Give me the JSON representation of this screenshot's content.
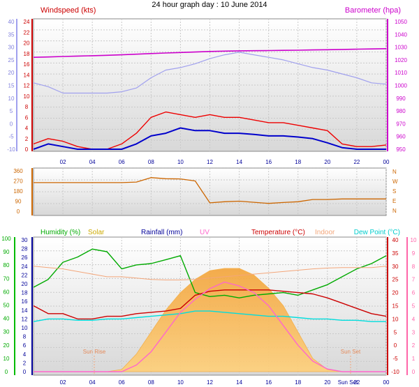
{
  "title": "24 hour graph day : 10 June 2014",
  "x_ticks": [
    "02",
    "04",
    "06",
    "08",
    "10",
    "12",
    "14",
    "16",
    "18",
    "20",
    "22",
    "00"
  ],
  "chart_data": [
    {
      "type": "line",
      "panel": "wind",
      "left_label": "Windspeed (kts)",
      "right_label": "Barometer (hpa)",
      "left_ticks": [
        "24",
        "22",
        "20",
        "18",
        "16",
        "14",
        "12",
        "10",
        "8",
        "6",
        "4",
        "2",
        "0"
      ],
      "blue_ticks": [
        "40",
        "35",
        "30",
        "25",
        "20",
        "15",
        "10",
        "5",
        "0",
        "-5",
        "-10"
      ],
      "right_ticks": [
        "1050",
        "1040",
        "1030",
        "1020",
        "1010",
        "1000",
        "990",
        "980",
        "970",
        "960",
        "950"
      ],
      "hours": [
        0,
        1,
        2,
        3,
        4,
        5,
        6,
        7,
        8,
        9,
        10,
        11,
        12,
        13,
        14,
        15,
        16,
        17,
        18,
        19,
        20,
        21,
        22,
        23,
        24
      ],
      "series": [
        {
          "key": "barometer",
          "values": [
            1022,
            1022.3,
            1022.7,
            1023,
            1023.3,
            1023.6,
            1024,
            1024.5,
            1025,
            1025.4,
            1025.8,
            1026.2,
            1026.6,
            1026.9,
            1027.1,
            1027.2,
            1027.3,
            1027.5,
            1027.6,
            1027.8,
            1028,
            1028.2,
            1028.4,
            1028.6,
            1028.8
          ],
          "color": "#cc00cc",
          "axis": "right"
        },
        {
          "key": "temperature-blue",
          "values": [
            16,
            14.5,
            12,
            12,
            12,
            12,
            12.5,
            14,
            18,
            21,
            22,
            23.5,
            25.5,
            27,
            28,
            27,
            26,
            25,
            23.5,
            22,
            21,
            19.5,
            18,
            16,
            15.5
          ],
          "color": "#a0a0ee",
          "axis": "blue"
        },
        {
          "key": "gust",
          "values": [
            1,
            2,
            1.5,
            0.5,
            0,
            0,
            1,
            3,
            6,
            7,
            6.5,
            6,
            6.5,
            6,
            6,
            5.5,
            5,
            5,
            4.5,
            4,
            3.5,
            1,
            0.5,
            0.5,
            0.8
          ],
          "color": "#ee0000",
          "axis": "left"
        },
        {
          "key": "windspeed",
          "values": [
            0,
            1,
            0.5,
            0,
            0,
            0,
            0,
            1,
            2.5,
            3,
            4,
            3.5,
            3.5,
            3,
            3,
            2.8,
            2.5,
            2.5,
            2.3,
            2,
            1.2,
            0.3,
            0,
            0,
            0
          ],
          "color": "#0000cc",
          "axis": "left"
        }
      ]
    },
    {
      "type": "line",
      "panel": "direction",
      "left_ticks": [
        "360",
        "270",
        "180",
        "90",
        "0"
      ],
      "right_labels": [
        "N",
        "W",
        "S",
        "E",
        "N"
      ],
      "hours": [
        0,
        1,
        2,
        3,
        4,
        5,
        6,
        7,
        8,
        9,
        10,
        11,
        12,
        13,
        14,
        15,
        16,
        17,
        18,
        19,
        20,
        21,
        22,
        23,
        24
      ],
      "series": [
        {
          "key": "wind-direction",
          "values": [
            255,
            255,
            255,
            255,
            255,
            255,
            255,
            260,
            300,
            290,
            288,
            270,
            75,
            85,
            90,
            80,
            70,
            78,
            85,
            105,
            105,
            110,
            110,
            110,
            110
          ],
          "color": "#cc6600"
        }
      ]
    },
    {
      "type": "line",
      "panel": "lower",
      "labels": {
        "humidity": "Humidity (%)",
        "solar": "Solar",
        "rainfall": "Rainfall (mm)",
        "uv": "UV",
        "temperature": "Temperature (°C)",
        "indoor": "Indoor",
        "dewpoint": "Dew Point (°C)"
      },
      "hum_ticks": [
        "100",
        "90",
        "80",
        "70",
        "60",
        "50",
        "40",
        "30",
        "20",
        "10",
        "0"
      ],
      "rain_ticks": [
        "30",
        "28",
        "26",
        "24",
        "22",
        "20",
        "18",
        "16",
        "14",
        "12",
        "10",
        "8",
        "6",
        "4",
        "2",
        "0"
      ],
      "temp_ticks": [
        "40",
        "35",
        "30",
        "25",
        "20",
        "15",
        "10",
        "5",
        "0",
        "-5",
        "-10"
      ],
      "uv_ticks": [
        "10",
        "9",
        "8",
        "7",
        "6",
        "5",
        "4",
        "3",
        "2",
        "1",
        "0"
      ],
      "sunrise_label": "Sun Rise",
      "sunset_label": "Sun Set",
      "sunset_tick": "Sun Set",
      "hours": [
        0,
        1,
        2,
        3,
        4,
        5,
        6,
        7,
        8,
        9,
        10,
        11,
        12,
        13,
        14,
        15,
        16,
        17,
        18,
        19,
        20,
        21,
        22,
        23,
        24
      ],
      "series": [
        {
          "key": "humidity",
          "values": [
            64,
            70,
            83,
            87,
            93,
            91,
            78,
            81,
            82,
            85,
            88,
            60,
            57,
            58,
            56,
            58,
            59,
            60,
            58,
            62,
            66,
            72,
            78,
            82,
            88
          ],
          "color": "#00aa00",
          "axis": "hum"
        },
        {
          "key": "indoor",
          "values": [
            30,
            29.5,
            29,
            28,
            27,
            26,
            26,
            25.5,
            25,
            24.8,
            24.8,
            25,
            25.5,
            26,
            26.5,
            27,
            27.5,
            28,
            28.5,
            29,
            29.3,
            29.5,
            29.5,
            29.5,
            30
          ],
          "color": "#f3a67a",
          "axis": "temp"
        },
        {
          "key": "temperature",
          "values": [
            15,
            12,
            12,
            10,
            10,
            11,
            11,
            12,
            12.5,
            13,
            14,
            19,
            20.5,
            21,
            21,
            21,
            21,
            20.5,
            20,
            19.5,
            18,
            16,
            14,
            12,
            11
          ],
          "color": "#cc0000",
          "axis": "temp"
        },
        {
          "key": "dewpoint",
          "values": [
            9,
            10,
            10,
            9.5,
            9.5,
            10,
            10,
            10.5,
            11,
            11.5,
            12,
            13,
            13,
            12.5,
            12,
            11.5,
            11,
            11,
            10.5,
            10,
            10,
            9.5,
            9.5,
            9,
            9
          ],
          "color": "#00dddd",
          "axis": "temp"
        },
        {
          "key": "uv",
          "values": [
            0,
            0,
            0,
            0,
            0,
            0,
            0,
            0.5,
            1.5,
            3,
            4.5,
            5.5,
            6.3,
            6.8,
            6.5,
            6,
            5,
            3.5,
            2,
            0.8,
            0.2,
            0,
            0,
            0,
            0
          ],
          "color": "#ff66cc",
          "axis": "uv"
        },
        {
          "key": "solar",
          "values": [
            0,
            0,
            0,
            0,
            0,
            0,
            0.5,
            4,
            9,
            14,
            18,
            21,
            23,
            23.5,
            23.5,
            22,
            19,
            15,
            9,
            3,
            0.5,
            0,
            0,
            0,
            0
          ],
          "color": "#f6aa3a",
          "axis": "rain"
        }
      ]
    }
  ]
}
